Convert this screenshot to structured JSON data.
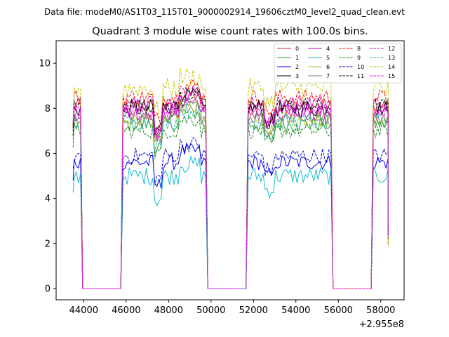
{
  "chart_data": {
    "type": "line",
    "suptitle": "Data file: modeM0/AS1T03_115T01_9000002914_19606cztM0_level2_quad_clean.evt",
    "title": "Quadrant 3 module wise count rates with 100.0s bins.",
    "xlabel": "",
    "ylabel": "",
    "x_offset_label": "+2.955e8",
    "xlim": [
      42700,
      59100
    ],
    "ylim": [
      -0.5,
      11
    ],
    "x_ticks": [
      44000,
      46000,
      48000,
      50000,
      52000,
      54000,
      56000,
      58000
    ],
    "x_tick_labels": [
      "44000",
      "46000",
      "48000",
      "50000",
      "52000",
      "54000",
      "56000",
      "58000"
    ],
    "y_ticks": [
      0,
      2,
      4,
      6,
      8,
      10
    ],
    "y_tick_labels": [
      "0",
      "2",
      "4",
      "6",
      "8",
      "10"
    ],
    "legend_position": "top-right",
    "segments": [
      {
        "start": 43550,
        "end": 43850,
        "values_by_module": "approx"
      },
      {
        "start": 45850,
        "end": 49750,
        "values_by_module": "approx"
      },
      {
        "start": 51750,
        "end": 55650,
        "values_by_module": "approx"
      },
      {
        "start": 57650,
        "end": 58350,
        "values_by_module": "approx"
      }
    ],
    "gap_level": 0,
    "series": [
      {
        "name": "0",
        "color": "#d62728",
        "dash": "solid",
        "mean": 8.1,
        "noise": 0.35
      },
      {
        "name": "1",
        "color": "#2ca02c",
        "dash": "solid",
        "mean": 7.3,
        "noise": 0.35
      },
      {
        "name": "2",
        "color": "#0000ff",
        "dash": "solid",
        "mean": 5.6,
        "noise": 0.35
      },
      {
        "name": "3",
        "color": "#000000",
        "dash": "solid",
        "mean": 8.0,
        "noise": 0.4
      },
      {
        "name": "4",
        "color": "#bf00bf",
        "dash": "solid",
        "mean": 7.8,
        "noise": 0.35
      },
      {
        "name": "5",
        "color": "#17becf",
        "dash": "solid",
        "mean": 5.0,
        "noise": 0.4
      },
      {
        "name": "6",
        "color": "#bcbd22",
        "dash": "solid",
        "mean": 7.5,
        "noise": 0.35
      },
      {
        "name": "7",
        "color": "#7f7f7f",
        "dash": "solid",
        "mean": 7.6,
        "noise": 0.3
      },
      {
        "name": "8",
        "color": "#ff0000",
        "dash": "dashed",
        "mean": 8.5,
        "noise": 0.35
      },
      {
        "name": "9",
        "color": "#228b22",
        "dash": "dashed",
        "mean": 7.0,
        "noise": 0.35
      },
      {
        "name": "10",
        "color": "#0000cd",
        "dash": "dashed",
        "mean": 5.9,
        "noise": 0.35
      },
      {
        "name": "11",
        "color": "#000000",
        "dash": "dashed",
        "mean": 8.1,
        "noise": 0.35
      },
      {
        "name": "12",
        "color": "#cc00cc",
        "dash": "dashed",
        "mean": 8.2,
        "noise": 0.35
      },
      {
        "name": "13",
        "color": "#20b2aa",
        "dash": "dashed",
        "mean": 7.4,
        "noise": 0.35
      },
      {
        "name": "14",
        "color": "#c8c800",
        "dash": "dashed",
        "mean": 8.9,
        "noise": 0.45
      },
      {
        "name": "15",
        "color": "#ff00ff",
        "dash": "dashed",
        "mean": 7.9,
        "noise": 0.35
      }
    ]
  }
}
